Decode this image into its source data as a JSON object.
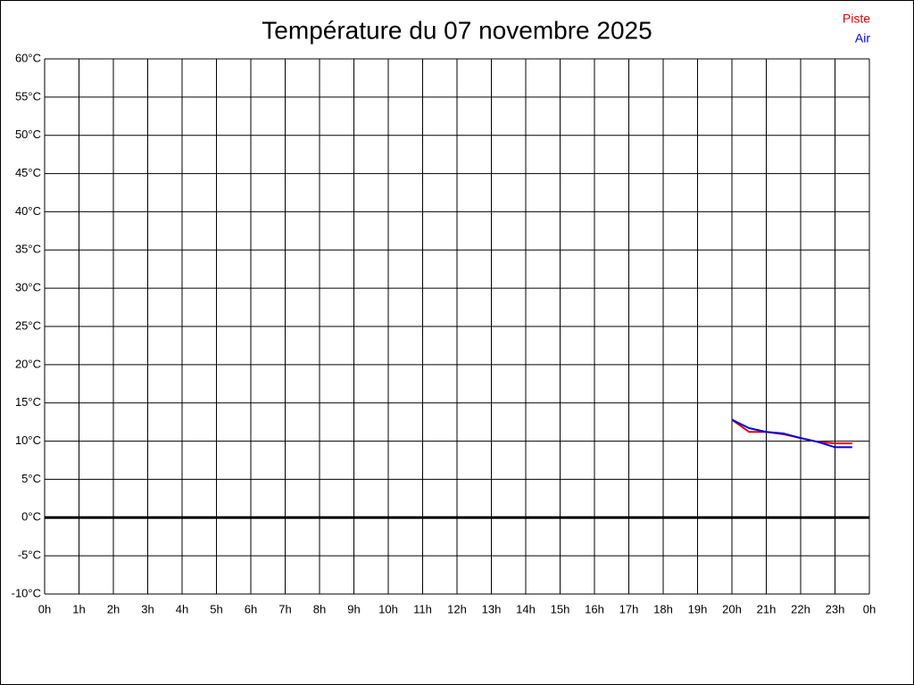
{
  "chart_data": {
    "type": "line",
    "title": "Température du 07 novembre 2025",
    "x": [
      20,
      20.5,
      21,
      21.5,
      22,
      22.5,
      23,
      23.5
    ],
    "series": [
      {
        "name": "Piste",
        "color": "#e00000",
        "values": [
          12.8,
          11.2,
          11.2,
          10.9,
          10.4,
          9.9,
          9.7,
          9.7
        ]
      },
      {
        "name": "Air",
        "color": "#0000e0",
        "values": [
          12.8,
          11.7,
          11.2,
          11.0,
          10.4,
          9.9,
          9.2,
          9.2
        ]
      }
    ],
    "xlim": [
      0,
      24
    ],
    "xticks": [
      {
        "value": 0,
        "label": "0h"
      },
      {
        "value": 1,
        "label": "1h"
      },
      {
        "value": 2,
        "label": "2h"
      },
      {
        "value": 3,
        "label": "3h"
      },
      {
        "value": 4,
        "label": "4h"
      },
      {
        "value": 5,
        "label": "5h"
      },
      {
        "value": 6,
        "label": "6h"
      },
      {
        "value": 7,
        "label": "7h"
      },
      {
        "value": 8,
        "label": "8h"
      },
      {
        "value": 9,
        "label": "9h"
      },
      {
        "value": 10,
        "label": "10h"
      },
      {
        "value": 11,
        "label": "11h"
      },
      {
        "value": 12,
        "label": "12h"
      },
      {
        "value": 13,
        "label": "13h"
      },
      {
        "value": 14,
        "label": "14h"
      },
      {
        "value": 15,
        "label": "15h"
      },
      {
        "value": 16,
        "label": "16h"
      },
      {
        "value": 17,
        "label": "17h"
      },
      {
        "value": 18,
        "label": "18h"
      },
      {
        "value": 19,
        "label": "19h"
      },
      {
        "value": 20,
        "label": "20h"
      },
      {
        "value": 21,
        "label": "21h"
      },
      {
        "value": 22,
        "label": "22h"
      },
      {
        "value": 23,
        "label": "23h"
      },
      {
        "value": 24,
        "label": "0h"
      }
    ],
    "ylim": [
      -10,
      60
    ],
    "yticks": [
      {
        "value": -10,
        "label": "-10°C"
      },
      {
        "value": -5,
        "label": "-5°C"
      },
      {
        "value": 0,
        "label": "0°C"
      },
      {
        "value": 5,
        "label": "5°C"
      },
      {
        "value": 10,
        "label": "10°C"
      },
      {
        "value": 15,
        "label": "15°C"
      },
      {
        "value": 20,
        "label": "20°C"
      },
      {
        "value": 25,
        "label": "25°C"
      },
      {
        "value": 30,
        "label": "30°C"
      },
      {
        "value": 35,
        "label": "35°C"
      },
      {
        "value": 40,
        "label": "40°C"
      },
      {
        "value": 45,
        "label": "45°C"
      },
      {
        "value": 50,
        "label": "50°C"
      },
      {
        "value": 55,
        "label": "55°C"
      },
      {
        "value": 60,
        "label": "60°C"
      }
    ],
    "grid": true,
    "zero_line": true,
    "legend": "top-right"
  }
}
